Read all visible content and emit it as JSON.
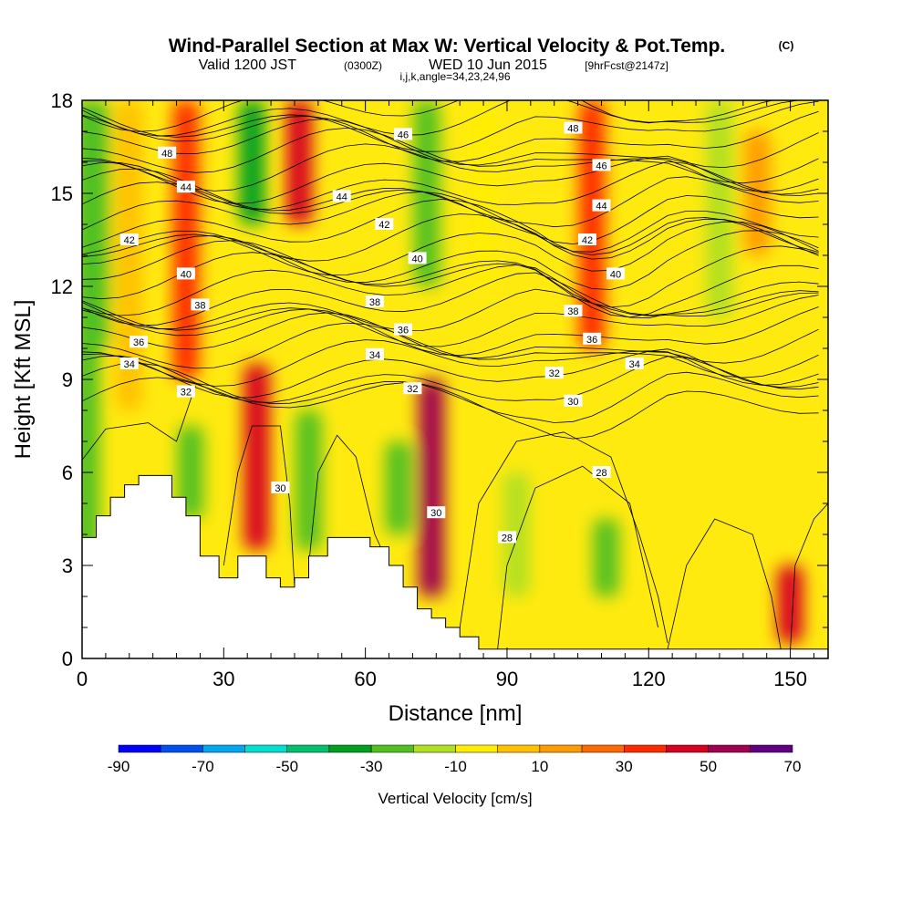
{
  "header": {
    "title": "Wind-Parallel Section at Max W: Vertical Velocity & Pot.Temp.",
    "copyright": "(C)",
    "valid_prefix": "Valid 1200 JST",
    "valid_z": "(0300Z)",
    "valid_date": "WED 10 Jun 2015",
    "forecast": "[9hrFcst@2147z]",
    "indices": "i,j,k,angle=34,23,24,96"
  },
  "chart_data": {
    "type": "heatmap",
    "xlabel": "Distance [nm]",
    "ylabel": "Height [Kft MSL]",
    "xlim": [
      0,
      158
    ],
    "ylim": [
      0,
      18
    ],
    "x_ticks": [
      0,
      30,
      60,
      90,
      120,
      150
    ],
    "y_ticks": [
      0,
      3,
      6,
      9,
      12,
      15,
      18
    ],
    "x_tick_labels": [
      "0",
      "30",
      "60",
      "90",
      "120",
      "150"
    ],
    "y_tick_labels": [
      "0",
      "3",
      "6",
      "9",
      "12",
      "15",
      "18"
    ],
    "colorbar": {
      "label": "Vertical Velocity [cm/s]",
      "min": -90,
      "max": 70,
      "step": 10,
      "tick_values": [
        -90,
        -70,
        -50,
        -30,
        -10,
        10,
        30,
        50,
        70
      ],
      "tick_labels": [
        "-90",
        "-70",
        "-50",
        "-30",
        "-10",
        "10",
        "30",
        "50",
        "70"
      ],
      "colors": [
        "#0000ff",
        "#0050f0",
        "#00a8f0",
        "#00e0d0",
        "#00c070",
        "#00a020",
        "#50c020",
        "#b0e020",
        "#ffee00",
        "#ffc000",
        "#ff9a00",
        "#ff6a00",
        "#ff2a00",
        "#d80020",
        "#a00050",
        "#600080"
      ]
    },
    "velocity_cells": [
      {
        "x": 1,
        "y_range": [
          0.4,
          18
        ],
        "w": -30
      },
      {
        "x": 3,
        "y_range": [
          10,
          18
        ],
        "w": -30
      },
      {
        "x": 10,
        "y_range": [
          8,
          18
        ],
        "w": 0
      },
      {
        "x": 22,
        "y_range": [
          9,
          18
        ],
        "w": 30
      },
      {
        "x": 23,
        "y_range": [
          4.5,
          7.5
        ],
        "w": -30
      },
      {
        "x": 37,
        "y_range": [
          3.5,
          9.5
        ],
        "w": 40
      },
      {
        "x": 36,
        "y_range": [
          14,
          18
        ],
        "w": -40
      },
      {
        "x": 46,
        "y_range": [
          14,
          18
        ],
        "w": 40
      },
      {
        "x": 48,
        "y_range": [
          3.5,
          8
        ],
        "w": -30
      },
      {
        "x": 67,
        "y_range": [
          4,
          7
        ],
        "w": -30
      },
      {
        "x": 73,
        "y_range": [
          12,
          18
        ],
        "w": -30
      },
      {
        "x": 74,
        "y_range": [
          2,
          9
        ],
        "w": 50
      },
      {
        "x": 85,
        "y_range": [
          12,
          18
        ],
        "w": -10
      },
      {
        "x": 92,
        "y_range": [
          2,
          6
        ],
        "w": -20
      },
      {
        "x": 108,
        "y_range": [
          10,
          18
        ],
        "w": 30
      },
      {
        "x": 111,
        "y_range": [
          2,
          4.5
        ],
        "w": -30
      },
      {
        "x": 135,
        "y_range": [
          11,
          18
        ],
        "w": -20
      },
      {
        "x": 143,
        "y_range": [
          13,
          17
        ],
        "w": 10
      },
      {
        "x": 150,
        "y_range": [
          0.5,
          3
        ],
        "w": 40
      }
    ],
    "potential_temperature_labels": [
      {
        "value": "48",
        "x": 18,
        "y": 16.3
      },
      {
        "value": "44",
        "x": 22,
        "y": 15.2
      },
      {
        "value": "42",
        "x": 10,
        "y": 13.5
      },
      {
        "value": "40",
        "x": 22,
        "y": 12.4
      },
      {
        "value": "38",
        "x": 25,
        "y": 11.4
      },
      {
        "value": "36",
        "x": 12,
        "y": 10.2
      },
      {
        "value": "34",
        "x": 10,
        "y": 9.5
      },
      {
        "value": "32",
        "x": 22,
        "y": 8.6
      },
      {
        "value": "30",
        "x": 42,
        "y": 5.5
      },
      {
        "value": "46",
        "x": 68,
        "y": 16.9
      },
      {
        "value": "44",
        "x": 55,
        "y": 14.9
      },
      {
        "value": "42",
        "x": 64,
        "y": 14
      },
      {
        "value": "40",
        "x": 71,
        "y": 12.9
      },
      {
        "value": "38",
        "x": 62,
        "y": 11.5
      },
      {
        "value": "36",
        "x": 68,
        "y": 10.6
      },
      {
        "value": "34",
        "x": 62,
        "y": 9.8
      },
      {
        "value": "32",
        "x": 70,
        "y": 8.7
      },
      {
        "value": "30",
        "x": 75,
        "y": 4.7
      },
      {
        "value": "28",
        "x": 90,
        "y": 3.9
      },
      {
        "value": "48",
        "x": 104,
        "y": 17.1
      },
      {
        "value": "46",
        "x": 110,
        "y": 15.9
      },
      {
        "value": "44",
        "x": 110,
        "y": 14.6
      },
      {
        "value": "42",
        "x": 107,
        "y": 13.5
      },
      {
        "value": "40",
        "x": 113,
        "y": 12.4
      },
      {
        "value": "38",
        "x": 104,
        "y": 11.2
      },
      {
        "value": "36",
        "x": 108,
        "y": 10.3
      },
      {
        "value": "34",
        "x": 117,
        "y": 9.5
      },
      {
        "value": "32",
        "x": 100,
        "y": 9.2
      },
      {
        "value": "30",
        "x": 104,
        "y": 8.3
      },
      {
        "value": "28",
        "x": 110,
        "y": 6
      }
    ],
    "terrain": [
      [
        0,
        3.9
      ],
      [
        3,
        3.9
      ],
      [
        3,
        4.6
      ],
      [
        6,
        4.6
      ],
      [
        6,
        5.2
      ],
      [
        9,
        5.2
      ],
      [
        9,
        5.6
      ],
      [
        12,
        5.6
      ],
      [
        12,
        5.9
      ],
      [
        19,
        5.9
      ],
      [
        19,
        5.2
      ],
      [
        22,
        5.2
      ],
      [
        22,
        4.6
      ],
      [
        25,
        4.6
      ],
      [
        25,
        3.3
      ],
      [
        29,
        3.3
      ],
      [
        29,
        2.6
      ],
      [
        33,
        2.6
      ],
      [
        33,
        3.3
      ],
      [
        39,
        3.3
      ],
      [
        39,
        2.6
      ],
      [
        42,
        2.6
      ],
      [
        42,
        2.3
      ],
      [
        45,
        2.3
      ],
      [
        45,
        2.6
      ],
      [
        48,
        2.6
      ],
      [
        48,
        3.3
      ],
      [
        52,
        3.3
      ],
      [
        52,
        3.9
      ],
      [
        61,
        3.9
      ],
      [
        61,
        3.6
      ],
      [
        65,
        3.6
      ],
      [
        65,
        3.0
      ],
      [
        68,
        3.0
      ],
      [
        68,
        2.3
      ],
      [
        71,
        2.3
      ],
      [
        71,
        1.6
      ],
      [
        74,
        1.6
      ],
      [
        74,
        1.3
      ],
      [
        77,
        1.3
      ],
      [
        77,
        1.0
      ],
      [
        80,
        1.0
      ],
      [
        80,
        0.7
      ],
      [
        84,
        0.7
      ],
      [
        84,
        0.3
      ],
      [
        158,
        0.3
      ],
      [
        158,
        0
      ],
      [
        0,
        0
      ]
    ]
  }
}
